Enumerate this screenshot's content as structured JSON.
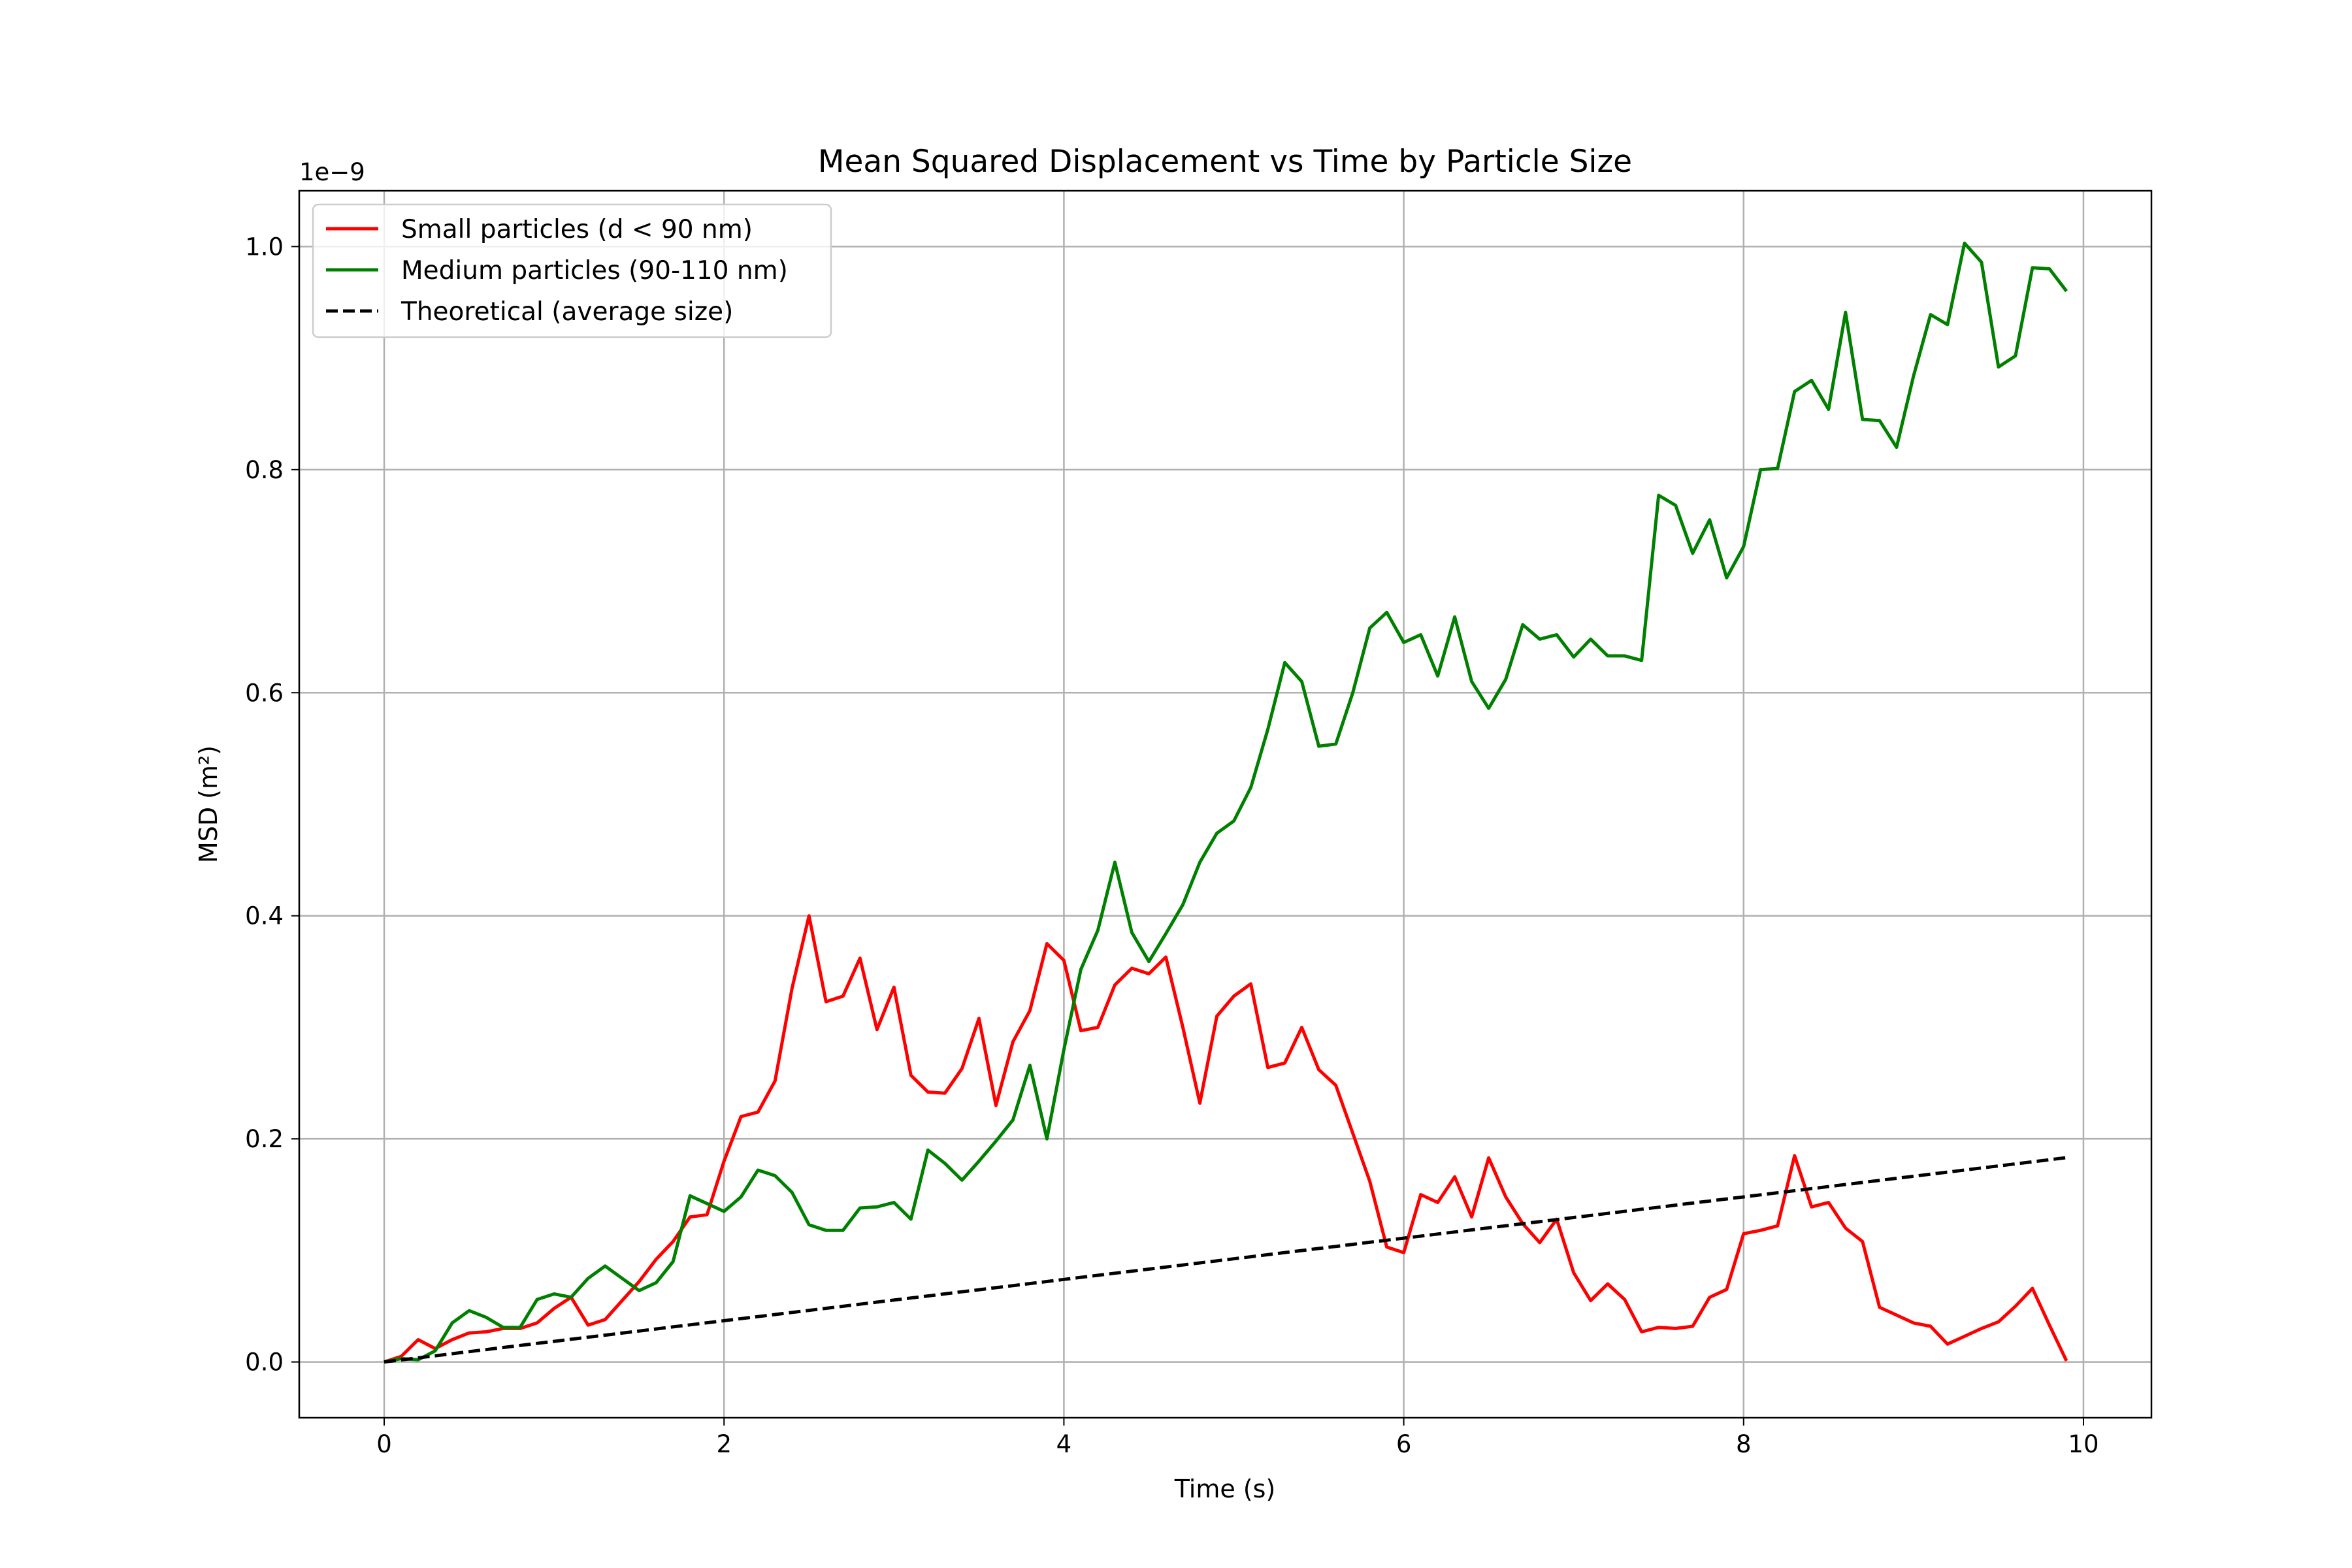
{
  "chart_data": {
    "type": "line",
    "title": "Mean Squared Displacement vs Time by Particle Size",
    "xlabel": "Time (s)",
    "ylabel": "MSD (m²)",
    "y_offset_label": "1e−9",
    "y_scale": "×1e-9",
    "xlim": [
      -0.5,
      10.4
    ],
    "ylim": [
      -0.05,
      1.05
    ],
    "xticks": [
      0,
      2,
      4,
      6,
      8,
      10
    ],
    "xtick_labels": [
      "0",
      "2",
      "4",
      "6",
      "8",
      "10"
    ],
    "yticks": [
      0.0,
      0.2,
      0.4,
      0.6,
      0.8,
      1.0
    ],
    "ytick_labels": [
      "0.0",
      "0.2",
      "0.4",
      "0.6",
      "0.8",
      "1.0"
    ],
    "grid": true,
    "legend_position": "upper-left",
    "x": [
      0.0,
      0.1,
      0.2,
      0.3,
      0.4,
      0.5,
      0.6,
      0.7,
      0.8,
      0.9,
      1.0,
      1.1,
      1.2,
      1.3,
      1.4,
      1.5,
      1.6,
      1.7,
      1.8,
      1.9,
      2.0,
      2.1,
      2.2,
      2.3,
      2.4,
      2.5,
      2.6,
      2.7,
      2.8,
      2.9,
      3.0,
      3.1,
      3.2,
      3.3,
      3.4,
      3.5,
      3.6,
      3.7,
      3.8,
      3.9,
      4.0,
      4.1,
      4.2,
      4.3,
      4.4,
      4.5,
      4.6,
      4.7,
      4.8,
      4.9,
      5.0,
      5.1,
      5.2,
      5.3,
      5.4,
      5.5,
      5.6,
      5.7,
      5.8,
      5.9,
      6.0,
      6.1,
      6.2,
      6.3,
      6.4,
      6.5,
      6.6,
      6.7,
      6.8,
      6.9,
      7.0,
      7.1,
      7.2,
      7.3,
      7.4,
      7.5,
      7.6,
      7.7,
      7.8,
      7.9,
      8.0,
      8.1,
      8.2,
      8.3,
      8.4,
      8.5,
      8.6,
      8.7,
      8.8,
      8.9,
      9.0,
      9.1,
      9.2,
      9.3,
      9.4,
      9.5,
      9.6,
      9.7,
      9.8,
      9.9
    ],
    "series": [
      {
        "name": "Small particles (d < 90 nm)",
        "color": "#ff0000",
        "style": "solid",
        "values": [
          0.0,
          0.005,
          0.02,
          0.012,
          0.02,
          0.026,
          0.027,
          0.03,
          0.03,
          0.035,
          0.048,
          0.058,
          0.033,
          0.038,
          0.055,
          0.072,
          0.092,
          0.108,
          0.13,
          0.132,
          0.18,
          0.22,
          0.224,
          0.252,
          0.335,
          0.4,
          0.323,
          0.328,
          0.362,
          0.298,
          0.336,
          0.257,
          0.242,
          0.241,
          0.263,
          0.308,
          0.23,
          0.287,
          0.315,
          0.375,
          0.36,
          0.297,
          0.3,
          0.338,
          0.353,
          0.348,
          0.363,
          0.3,
          0.232,
          0.31,
          0.328,
          0.339,
          0.264,
          0.268,
          0.3,
          0.262,
          0.248,
          0.205,
          0.162,
          0.103,
          0.098,
          0.15,
          0.143,
          0.166,
          0.13,
          0.183,
          0.148,
          0.124,
          0.107,
          0.128,
          0.08,
          0.055,
          0.07,
          0.056,
          0.027,
          0.031,
          0.03,
          0.032,
          0.058,
          0.065,
          0.115,
          0.118,
          0.122,
          0.185,
          0.139,
          0.143,
          0.12,
          0.108,
          0.049,
          0.042,
          0.035,
          0.032,
          0.016,
          0.023,
          0.03,
          0.036,
          0.05,
          0.066,
          0.033,
          0.001
        ]
      },
      {
        "name": "Medium particles (90-110 nm)",
        "color": "#008000",
        "style": "solid",
        "values": [
          0.0,
          0.003,
          0.002,
          0.01,
          0.035,
          0.046,
          0.04,
          0.031,
          0.031,
          0.056,
          0.061,
          0.058,
          0.075,
          0.086,
          0.075,
          0.064,
          0.071,
          0.09,
          0.149,
          0.142,
          0.135,
          0.148,
          0.172,
          0.167,
          0.152,
          0.123,
          0.118,
          0.118,
          0.138,
          0.139,
          0.143,
          0.128,
          0.19,
          0.178,
          0.163,
          0.18,
          0.198,
          0.217,
          0.266,
          0.2,
          0.28,
          0.352,
          0.387,
          0.448,
          0.385,
          0.359,
          0.384,
          0.41,
          0.448,
          0.474,
          0.485,
          0.515,
          0.567,
          0.627,
          0.61,
          0.552,
          0.554,
          0.6,
          0.658,
          0.672,
          0.645,
          0.652,
          0.615,
          0.668,
          0.61,
          0.586,
          0.612,
          0.661,
          0.648,
          0.652,
          0.632,
          0.648,
          0.633,
          0.633,
          0.629,
          0.777,
          0.768,
          0.725,
          0.755,
          0.703,
          0.731,
          0.8,
          0.801,
          0.87,
          0.88,
          0.854,
          0.941,
          0.845,
          0.844,
          0.82,
          0.884,
          0.939,
          0.93,
          1.003,
          0.986,
          0.892,
          0.902,
          0.981,
          0.98,
          0.96
        ]
      },
      {
        "name": "Theoretical (average size)",
        "color": "#000000",
        "style": "dashed",
        "values": [
          0.0,
          0.00185,
          0.0037,
          0.00555,
          0.0074,
          0.00925,
          0.0111,
          0.01295,
          0.0148,
          0.01665,
          0.0185,
          0.02035,
          0.0222,
          0.02405,
          0.0259,
          0.02775,
          0.0296,
          0.03145,
          0.0333,
          0.03515,
          0.037,
          0.03885,
          0.0407,
          0.04255,
          0.0444,
          0.04625,
          0.0481,
          0.04995,
          0.0518,
          0.05365,
          0.0555,
          0.05735,
          0.0592,
          0.06105,
          0.0629,
          0.06475,
          0.0666,
          0.06845,
          0.0703,
          0.07215,
          0.074,
          0.07585,
          0.0777,
          0.07955,
          0.0814,
          0.08325,
          0.0851,
          0.08695,
          0.0888,
          0.09065,
          0.0925,
          0.09435,
          0.0962,
          0.09805,
          0.0999,
          0.10175,
          0.1036,
          0.10545,
          0.1073,
          0.10915,
          0.111,
          0.11285,
          0.1147,
          0.11655,
          0.1184,
          0.12025,
          0.1221,
          0.12395,
          0.1258,
          0.12765,
          0.1295,
          0.13135,
          0.1332,
          0.13505,
          0.1369,
          0.13875,
          0.1406,
          0.14245,
          0.1443,
          0.14615,
          0.148,
          0.14985,
          0.1517,
          0.15355,
          0.1554,
          0.15725,
          0.1591,
          0.16095,
          0.1628,
          0.16465,
          0.1665,
          0.16835,
          0.1702,
          0.17205,
          0.1739,
          0.17575,
          0.1776,
          0.17945,
          0.1813,
          0.18315
        ]
      }
    ]
  }
}
